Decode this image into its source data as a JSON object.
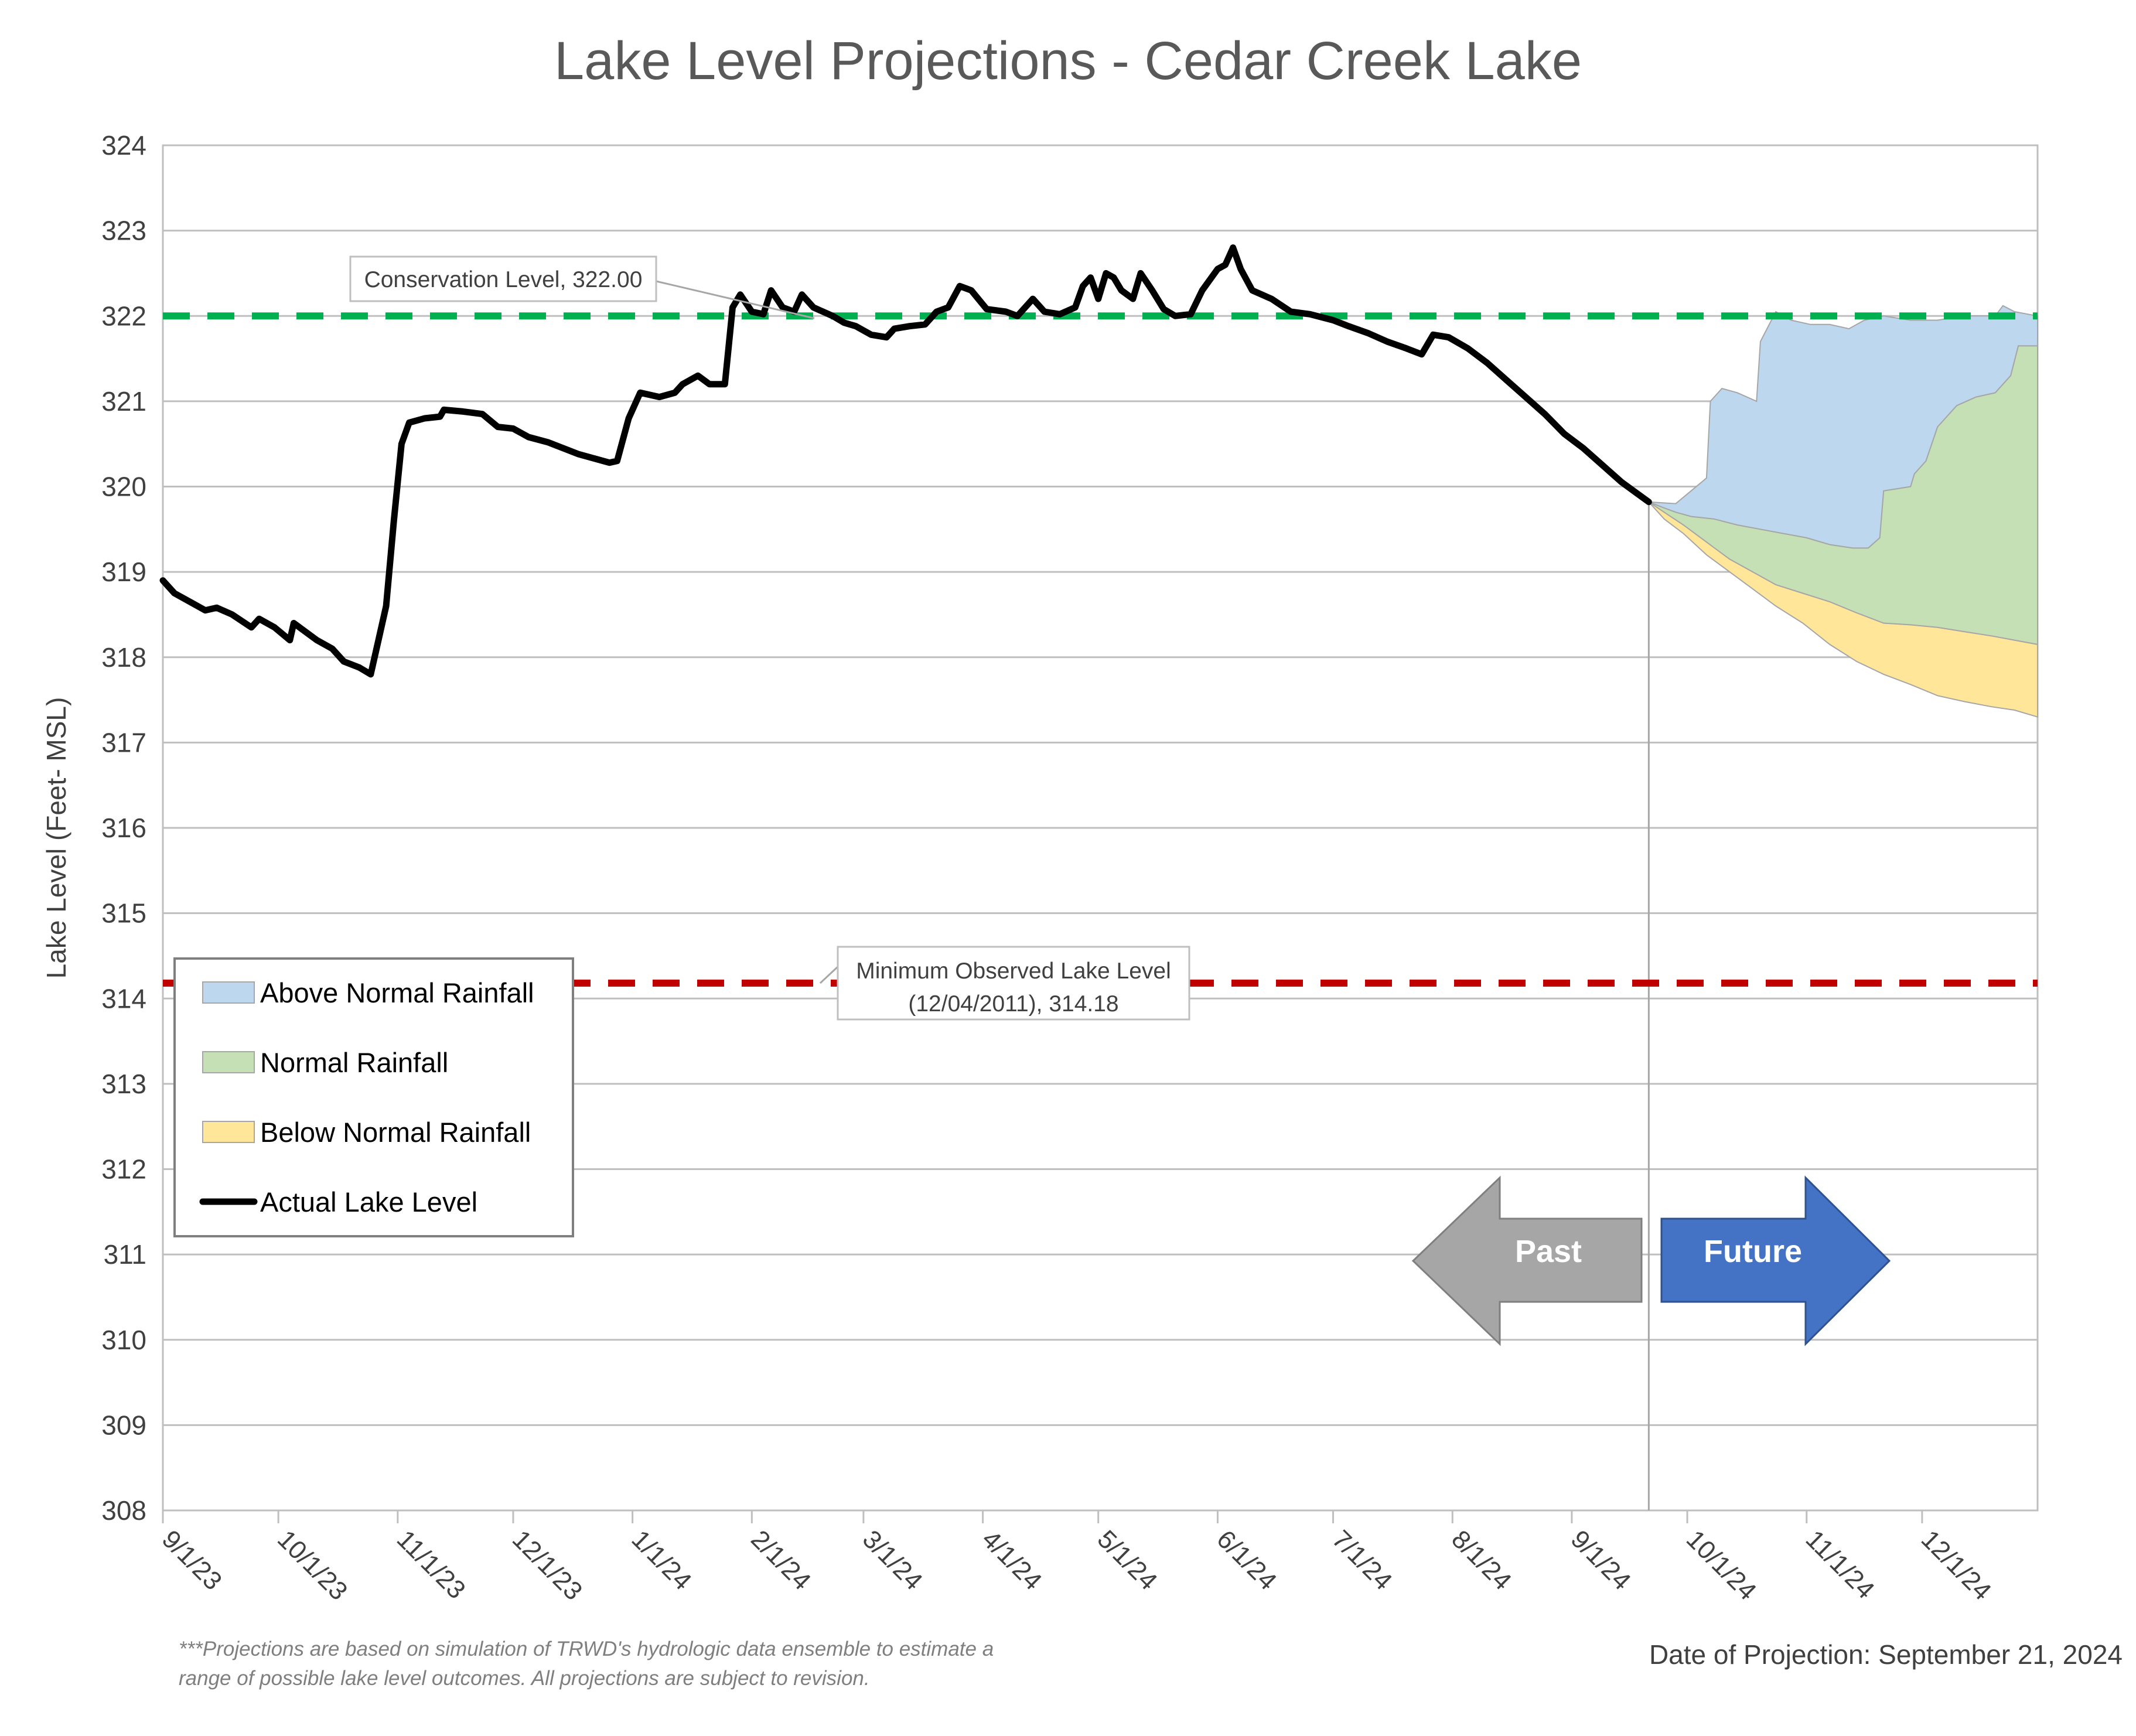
{
  "chart_data": {
    "type": "area",
    "title": "Lake Level Projections - Cedar Creek Lake",
    "ylabel": "Lake Level (Feet- MSL)",
    "xlabel": "",
    "ylim": [
      308,
      324
    ],
    "yticks": [
      308,
      309,
      310,
      311,
      312,
      313,
      314,
      315,
      316,
      317,
      318,
      319,
      320,
      321,
      322,
      323,
      324
    ],
    "xlim": [
      "2023-09-01",
      "2024-12-31"
    ],
    "xticks": [
      {
        "date": "2023-09-01",
        "label": "9/1/23"
      },
      {
        "date": "2023-10-01",
        "label": "10/1/23"
      },
      {
        "date": "2023-11-01",
        "label": "11/1/23"
      },
      {
        "date": "2023-12-01",
        "label": "12/1/23"
      },
      {
        "date": "2024-01-01",
        "label": "1/1/24"
      },
      {
        "date": "2024-02-01",
        "label": "2/1/24"
      },
      {
        "date": "2024-03-01",
        "label": "3/1/24"
      },
      {
        "date": "2024-04-01",
        "label": "4/1/24"
      },
      {
        "date": "2024-05-01",
        "label": "5/1/24"
      },
      {
        "date": "2024-06-01",
        "label": "6/1/24"
      },
      {
        "date": "2024-07-01",
        "label": "7/1/24"
      },
      {
        "date": "2024-08-01",
        "label": "8/1/24"
      },
      {
        "date": "2024-09-01",
        "label": "9/1/24"
      },
      {
        "date": "2024-10-01",
        "label": "10/1/24"
      },
      {
        "date": "2024-11-01",
        "label": "11/1/24"
      },
      {
        "date": "2024-12-01",
        "label": "12/1/24"
      }
    ],
    "grid": true,
    "legend_position": "left",
    "legend": [
      {
        "label": "Above Normal Rainfall",
        "kind": "swatch",
        "color": "#bdd7ee"
      },
      {
        "label": "Normal Rainfall",
        "kind": "swatch",
        "color": "#c5e0b4"
      },
      {
        "label": "Below Normal Rainfall",
        "kind": "swatch",
        "color": "#ffe699"
      },
      {
        "label": "Actual Lake Level",
        "kind": "line",
        "color": "#000000"
      }
    ],
    "reference_lines": [
      {
        "y": 322.0,
        "color": "#00b050",
        "label": "Conservation Level, 322.00"
      },
      {
        "y": 314.18,
        "color": "#c00000",
        "label_line1": "Minimum Observed Lake Level",
        "label_line2": "(12/04/2011), 314.18"
      }
    ],
    "projection_date": "2024-09-21",
    "arrows": {
      "past": "Past",
      "future": "Future"
    },
    "footnote_line1": "***Projections are based on simulation of TRWD's hydrologic data ensemble to estimate a",
    "footnote_line2": "range of possible lake level outcomes.  All projections are subject to revision.",
    "date_of_projection": "Date of Projection: September 21, 2024",
    "colors": {
      "above_normal": "#bdd7ee",
      "normal": "#c5e0b4",
      "below_normal": "#ffe699",
      "actual": "#000000",
      "grid": "#bfbfbf",
      "past_arrow": "#a6a6a6",
      "future_arrow": "#4472c4"
    },
    "series": [
      {
        "name": "Actual Lake Level",
        "points": [
          [
            "2023-09-01",
            318.9
          ],
          [
            "2023-09-04",
            318.75
          ],
          [
            "2023-09-08",
            318.65
          ],
          [
            "2023-09-12",
            318.55
          ],
          [
            "2023-09-15",
            318.58
          ],
          [
            "2023-09-19",
            318.5
          ],
          [
            "2023-09-24",
            318.35
          ],
          [
            "2023-09-26",
            318.45
          ],
          [
            "2023-09-30",
            318.35
          ],
          [
            "2023-10-04",
            318.2
          ],
          [
            "2023-10-05",
            318.4
          ],
          [
            "2023-10-08",
            318.3
          ],
          [
            "2023-10-11",
            318.2
          ],
          [
            "2023-10-15",
            318.1
          ],
          [
            "2023-10-18",
            317.95
          ],
          [
            "2023-10-22",
            317.88
          ],
          [
            "2023-10-25",
            317.8
          ],
          [
            "2023-10-27",
            318.2
          ],
          [
            "2023-10-29",
            318.6
          ],
          [
            "2023-10-31",
            319.6
          ],
          [
            "2023-11-02",
            320.5
          ],
          [
            "2023-11-04",
            320.75
          ],
          [
            "2023-11-08",
            320.8
          ],
          [
            "2023-11-12",
            320.82
          ],
          [
            "2023-11-13",
            320.9
          ],
          [
            "2023-11-18",
            320.88
          ],
          [
            "2023-11-23",
            320.85
          ],
          [
            "2023-11-27",
            320.7
          ],
          [
            "2023-12-01",
            320.68
          ],
          [
            "2023-12-05",
            320.58
          ],
          [
            "2023-12-10",
            320.52
          ],
          [
            "2023-12-14",
            320.45
          ],
          [
            "2023-12-18",
            320.38
          ],
          [
            "2023-12-22",
            320.33
          ],
          [
            "2023-12-26",
            320.28
          ],
          [
            "2023-12-28",
            320.3
          ],
          [
            "2023-12-31",
            320.8
          ],
          [
            "2024-01-03",
            321.1
          ],
          [
            "2024-01-08",
            321.05
          ],
          [
            "2024-01-12",
            321.1
          ],
          [
            "2024-01-14",
            321.2
          ],
          [
            "2024-01-18",
            321.3
          ],
          [
            "2024-01-21",
            321.2
          ],
          [
            "2024-01-25",
            321.2
          ],
          [
            "2024-01-27",
            322.1
          ],
          [
            "2024-01-29",
            322.25
          ],
          [
            "2024-02-01",
            322.05
          ],
          [
            "2024-02-04",
            322.02
          ],
          [
            "2024-02-06",
            322.3
          ],
          [
            "2024-02-09",
            322.1
          ],
          [
            "2024-02-12",
            322.05
          ],
          [
            "2024-02-14",
            322.25
          ],
          [
            "2024-02-17",
            322.1
          ],
          [
            "2024-02-22",
            322.0
          ],
          [
            "2024-02-25",
            321.92
          ],
          [
            "2024-02-28",
            321.88
          ],
          [
            "2024-03-03",
            321.78
          ],
          [
            "2024-03-07",
            321.75
          ],
          [
            "2024-03-09",
            321.85
          ],
          [
            "2024-03-13",
            321.88
          ],
          [
            "2024-03-17",
            321.9
          ],
          [
            "2024-03-20",
            322.05
          ],
          [
            "2024-03-23",
            322.1
          ],
          [
            "2024-03-26",
            322.35
          ],
          [
            "2024-03-29",
            322.3
          ],
          [
            "2024-04-02",
            322.08
          ],
          [
            "2024-04-07",
            322.05
          ],
          [
            "2024-04-10",
            322.0
          ],
          [
            "2024-04-14",
            322.2
          ],
          [
            "2024-04-17",
            322.05
          ],
          [
            "2024-04-21",
            322.02
          ],
          [
            "2024-04-25",
            322.1
          ],
          [
            "2024-04-27",
            322.35
          ],
          [
            "2024-04-29",
            322.45
          ],
          [
            "2024-05-01",
            322.2
          ],
          [
            "2024-05-03",
            322.5
          ],
          [
            "2024-05-05",
            322.45
          ],
          [
            "2024-05-07",
            322.3
          ],
          [
            "2024-05-10",
            322.2
          ],
          [
            "2024-05-12",
            322.5
          ],
          [
            "2024-05-15",
            322.3
          ],
          [
            "2024-05-18",
            322.08
          ],
          [
            "2024-05-21",
            322.0
          ],
          [
            "2024-05-25",
            322.02
          ],
          [
            "2024-05-28",
            322.3
          ],
          [
            "2024-06-01",
            322.55
          ],
          [
            "2024-06-03",
            322.6
          ],
          [
            "2024-06-05",
            322.8
          ],
          [
            "2024-06-07",
            322.55
          ],
          [
            "2024-06-10",
            322.3
          ],
          [
            "2024-06-15",
            322.2
          ],
          [
            "2024-06-20",
            322.05
          ],
          [
            "2024-06-25",
            322.02
          ],
          [
            "2024-07-01",
            321.95
          ],
          [
            "2024-07-05",
            321.88
          ],
          [
            "2024-07-10",
            321.8
          ],
          [
            "2024-07-15",
            321.7
          ],
          [
            "2024-07-20",
            321.62
          ],
          [
            "2024-07-24",
            321.55
          ],
          [
            "2024-07-27",
            321.78
          ],
          [
            "2024-07-31",
            321.75
          ],
          [
            "2024-08-05",
            321.62
          ],
          [
            "2024-08-10",
            321.45
          ],
          [
            "2024-08-15",
            321.25
          ],
          [
            "2024-08-20",
            321.05
          ],
          [
            "2024-08-25",
            320.85
          ],
          [
            "2024-08-30",
            320.62
          ],
          [
            "2024-09-04",
            320.45
          ],
          [
            "2024-09-09",
            320.25
          ],
          [
            "2024-09-14",
            320.05
          ],
          [
            "2024-09-21",
            319.82
          ]
        ]
      },
      {
        "name": "Above Normal Rainfall",
        "points": [
          [
            "2024-09-21",
            319.82
          ],
          [
            "2024-09-28",
            319.8
          ],
          [
            "2024-10-02",
            319.95
          ],
          [
            "2024-10-06",
            320.1
          ],
          [
            "2024-10-07",
            321.0
          ],
          [
            "2024-10-10",
            321.15
          ],
          [
            "2024-10-14",
            321.1
          ],
          [
            "2024-10-19",
            321.0
          ],
          [
            "2024-10-20",
            321.7
          ],
          [
            "2024-10-24",
            322.05
          ],
          [
            "2024-10-28",
            321.95
          ],
          [
            "2024-11-02",
            321.9
          ],
          [
            "2024-11-07",
            321.9
          ],
          [
            "2024-11-12",
            321.85
          ],
          [
            "2024-11-16",
            321.95
          ],
          [
            "2024-11-21",
            322.0
          ],
          [
            "2024-11-28",
            321.95
          ],
          [
            "2024-12-05",
            321.95
          ],
          [
            "2024-12-12",
            322.0
          ],
          [
            "2024-12-20",
            322.0
          ],
          [
            "2024-12-22",
            322.12
          ],
          [
            "2024-12-25",
            322.05
          ],
          [
            "2024-12-31",
            322.0
          ]
        ]
      },
      {
        "name": "Normal Rainfall",
        "points": [
          [
            "2024-09-21",
            319.82
          ],
          [
            "2024-09-25",
            319.75
          ],
          [
            "2024-09-28",
            319.7
          ],
          [
            "2024-10-02",
            319.65
          ],
          [
            "2024-10-08",
            319.62
          ],
          [
            "2024-10-14",
            319.55
          ],
          [
            "2024-10-20",
            319.5
          ],
          [
            "2024-10-26",
            319.45
          ],
          [
            "2024-11-01",
            319.4
          ],
          [
            "2024-11-07",
            319.32
          ],
          [
            "2024-11-13",
            319.28
          ],
          [
            "2024-11-17",
            319.28
          ],
          [
            "2024-11-20",
            319.4
          ],
          [
            "2024-11-21",
            319.95
          ],
          [
            "2024-11-28",
            320.0
          ],
          [
            "2024-11-29",
            320.15
          ],
          [
            "2024-12-02",
            320.3
          ],
          [
            "2024-12-05",
            320.7
          ],
          [
            "2024-12-10",
            320.95
          ],
          [
            "2024-12-15",
            321.05
          ],
          [
            "2024-12-20",
            321.1
          ],
          [
            "2024-12-24",
            321.3
          ],
          [
            "2024-12-26",
            321.65
          ],
          [
            "2024-12-31",
            321.65
          ]
        ]
      },
      {
        "name": "Below Normal Rainfall",
        "points": [
          [
            "2024-09-21",
            319.82
          ],
          [
            "2024-09-25",
            319.7
          ],
          [
            "2024-09-30",
            319.55
          ],
          [
            "2024-10-06",
            319.35
          ],
          [
            "2024-10-12",
            319.15
          ],
          [
            "2024-10-18",
            319.0
          ],
          [
            "2024-10-24",
            318.85
          ],
          [
            "2024-10-31",
            318.75
          ],
          [
            "2024-11-07",
            318.65
          ],
          [
            "2024-11-14",
            318.52
          ],
          [
            "2024-11-21",
            318.4
          ],
          [
            "2024-11-28",
            318.38
          ],
          [
            "2024-12-05",
            318.35
          ],
          [
            "2024-12-12",
            318.3
          ],
          [
            "2024-12-19",
            318.25
          ],
          [
            "2024-12-25",
            318.2
          ],
          [
            "2024-12-31",
            318.15
          ]
        ]
      },
      {
        "name": "Below Normal Rainfall lower bound",
        "points": [
          [
            "2024-09-21",
            319.82
          ],
          [
            "2024-09-25",
            319.62
          ],
          [
            "2024-09-30",
            319.45
          ],
          [
            "2024-10-06",
            319.2
          ],
          [
            "2024-10-12",
            319.0
          ],
          [
            "2024-10-18",
            318.8
          ],
          [
            "2024-10-24",
            318.6
          ],
          [
            "2024-10-31",
            318.4
          ],
          [
            "2024-11-07",
            318.15
          ],
          [
            "2024-11-14",
            317.95
          ],
          [
            "2024-11-21",
            317.8
          ],
          [
            "2024-11-28",
            317.68
          ],
          [
            "2024-12-05",
            317.55
          ],
          [
            "2024-12-12",
            317.48
          ],
          [
            "2024-12-19",
            317.42
          ],
          [
            "2024-12-25",
            317.38
          ],
          [
            "2024-12-31",
            317.3
          ]
        ]
      }
    ]
  }
}
